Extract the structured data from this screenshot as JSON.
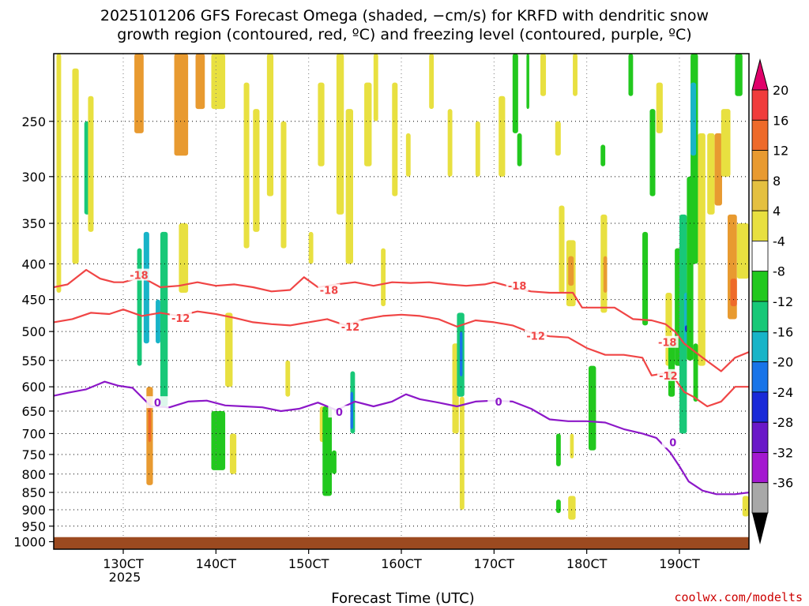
{
  "chart_data": {
    "type": "heatmap",
    "title_line1": "2025101206 GFS Forecast Omega (shaded, −cm/s) for KRFD with dendritic snow",
    "title_line2": "growth region (contoured, red, ºC) and freezing level (contoured, purple, ºC)",
    "xlabel": "Forecast Time (UTC)",
    "ylabel": "",
    "credit": "coolwx.com/modelts",
    "x_ticks": [
      "130CT",
      "140CT",
      "150CT",
      "160CT",
      "170CT",
      "180CT",
      "190CT"
    ],
    "x_year_label": "2025",
    "x_tick_days": [
      13,
      14,
      15,
      16,
      17,
      18,
      19
    ],
    "xlim_days": [
      12.25,
      19.75
    ],
    "y_ticks": [
      250,
      300,
      350,
      400,
      450,
      500,
      550,
      600,
      650,
      700,
      750,
      800,
      850,
      900,
      950,
      1000
    ],
    "ylim_hpa": [
      200,
      1025
    ],
    "y_scale": "log-pressure (inverted)",
    "grid": "dotted",
    "ground_pressure_hpa": 985,
    "colorbar": {
      "levels": [
        "20",
        "16",
        "12",
        "8",
        "4",
        "-4",
        "-8",
        "-12",
        "-16",
        "-20",
        "-24",
        "-28",
        "-32",
        "-36"
      ],
      "colors": [
        "#f03c3c",
        "#ee6a2a",
        "#e89a30",
        "#e4c040",
        "#e8e040",
        "#ffffff",
        "#22c81e",
        "#18c878",
        "#18b4c8",
        "#1874e8",
        "#1a2ad8",
        "#6a18c8",
        "#a418d0",
        "#a8a8a8"
      ],
      "top_arrow_color": "#e0006a",
      "bottom_arrow_color": "#000000"
    },
    "contours": [
      {
        "name": "-18",
        "color": "#f04545",
        "label": "-18",
        "x": [
          12.25,
          12.4,
          12.6,
          12.75,
          12.9,
          13.0,
          13.2,
          13.4,
          13.6,
          13.8,
          14.0,
          14.2,
          14.4,
          14.6,
          14.8,
          14.95,
          15.1,
          15.3,
          15.5,
          15.7,
          15.9,
          16.1,
          16.3,
          16.5,
          16.7,
          16.9,
          17.0,
          17.2,
          17.4,
          17.6,
          17.85,
          17.95,
          18.1,
          18.3,
          18.5,
          18.7,
          18.85,
          18.95,
          19.05,
          19.25,
          19.45,
          19.6,
          19.75
        ],
        "y": [
          432,
          428,
          408,
          420,
          425,
          425,
          418,
          432,
          430,
          425,
          430,
          428,
          432,
          438,
          436,
          418,
          432,
          428,
          425,
          430,
          425,
          426,
          425,
          428,
          430,
          428,
          425,
          432,
          438,
          440,
          440,
          462,
          462,
          462,
          480,
          482,
          488,
          500,
          520,
          545,
          570,
          545,
          535
        ]
      },
      {
        "name": "-12",
        "color": "#f04545",
        "label": "-12",
        "x": [
          12.25,
          12.45,
          12.65,
          12.85,
          13.0,
          13.2,
          13.4,
          13.6,
          13.8,
          14.0,
          14.2,
          14.4,
          14.6,
          14.8,
          15.0,
          15.2,
          15.4,
          15.6,
          15.8,
          16.0,
          16.2,
          16.4,
          16.6,
          16.8,
          17.0,
          17.2,
          17.4,
          17.6,
          17.8,
          18.0,
          18.2,
          18.4,
          18.6,
          18.7,
          18.8,
          18.9,
          19.05,
          19.15,
          19.3,
          19.45,
          19.6,
          19.75
        ],
        "y": [
          485,
          480,
          470,
          472,
          465,
          475,
          470,
          475,
          468,
          472,
          478,
          485,
          488,
          490,
          485,
          480,
          490,
          480,
          475,
          473,
          475,
          480,
          492,
          482,
          485,
          490,
          502,
          508,
          510,
          528,
          540,
          540,
          545,
          578,
          575,
          572,
          610,
          620,
          640,
          630,
          600,
          600
        ]
      },
      {
        "name": "0",
        "color": "#8c18c8",
        "label": "0",
        "x": [
          12.25,
          12.4,
          12.6,
          12.8,
          12.95,
          13.1,
          13.3,
          13.5,
          13.7,
          13.9,
          14.1,
          14.3,
          14.5,
          14.7,
          14.9,
          15.1,
          15.3,
          15.5,
          15.7,
          15.9,
          16.05,
          16.2,
          16.4,
          16.6,
          16.8,
          17.0,
          17.2,
          17.4,
          17.6,
          17.8,
          18.0,
          18.2,
          18.4,
          18.6,
          18.75,
          18.9,
          19.0,
          19.1,
          19.25,
          19.4,
          19.6,
          19.75
        ],
        "y": [
          618,
          612,
          605,
          590,
          598,
          602,
          640,
          642,
          630,
          628,
          638,
          640,
          642,
          650,
          645,
          632,
          648,
          630,
          640,
          630,
          615,
          625,
          632,
          640,
          630,
          628,
          630,
          645,
          668,
          672,
          672,
          675,
          690,
          700,
          710,
          745,
          780,
          820,
          845,
          855,
          855,
          850
        ]
      }
    ],
    "contour_label_positions": [
      {
        "name": "-18",
        "x": 13.17,
        "y": 415
      },
      {
        "name": "-18",
        "x": 15.22,
        "y": 436
      },
      {
        "name": "-18",
        "x": 17.25,
        "y": 430
      },
      {
        "name": "-12",
        "x": 13.62,
        "y": 478
      },
      {
        "name": "-12",
        "x": 15.45,
        "y": 492
      },
      {
        "name": "-12",
        "x": 17.45,
        "y": 507
      },
      {
        "name": "-18",
        "x": 18.87,
        "y": 518
      },
      {
        "name": "-12",
        "x": 18.88,
        "y": 578
      },
      {
        "name": "0",
        "x": 13.37,
        "y": 632
      },
      {
        "name": "0",
        "x": 15.33,
        "y": 652
      },
      {
        "name": "0",
        "x": 17.05,
        "y": 630
      },
      {
        "name": "0",
        "x": 18.93,
        "y": 720
      }
    ],
    "omega_cells": [
      {
        "x0": 12.28,
        "x1": 12.33,
        "p0": 200,
        "p1": 440,
        "v": 6
      },
      {
        "x0": 12.45,
        "x1": 12.52,
        "p0": 210,
        "p1": 400,
        "v": 6
      },
      {
        "x0": 12.58,
        "x1": 12.64,
        "p0": 250,
        "p1": 340,
        "v": -10
      },
      {
        "x0": 12.62,
        "x1": 12.68,
        "p0": 230,
        "p1": 360,
        "v": 6
      },
      {
        "x0": 13.12,
        "x1": 13.22,
        "p0": 200,
        "p1": 260,
        "v": 10
      },
      {
        "x0": 13.15,
        "x1": 13.2,
        "p0": 380,
        "p1": 560,
        "v": -10
      },
      {
        "x0": 13.22,
        "x1": 13.28,
        "p0": 360,
        "p1": 520,
        "v": -14
      },
      {
        "x0": 13.25,
        "x1": 13.32,
        "p0": 600,
        "p1": 830,
        "v": 10
      },
      {
        "x0": 13.27,
        "x1": 13.3,
        "p0": 620,
        "p1": 720,
        "v": 16
      },
      {
        "x0": 13.35,
        "x1": 13.4,
        "p0": 450,
        "p1": 520,
        "v": -12
      },
      {
        "x0": 13.4,
        "x1": 13.48,
        "p0": 360,
        "p1": 640,
        "v": -10
      },
      {
        "x0": 13.55,
        "x1": 13.7,
        "p0": 200,
        "p1": 280,
        "v": 10
      },
      {
        "x0": 13.6,
        "x1": 13.7,
        "p0": 350,
        "p1": 440,
        "v": 6
      },
      {
        "x0": 13.78,
        "x1": 13.88,
        "p0": 200,
        "p1": 240,
        "v": 10
      },
      {
        "x0": 13.95,
        "x1": 14.1,
        "p0": 200,
        "p1": 240,
        "v": 6
      },
      {
        "x0": 13.98,
        "x1": 14.05,
        "p0": 680,
        "p1": 740,
        "v": -12
      },
      {
        "x0": 13.95,
        "x1": 14.1,
        "p0": 650,
        "p1": 790,
        "v": -8
      },
      {
        "x0": 14.1,
        "x1": 14.18,
        "p0": 470,
        "p1": 600,
        "v": 6
      },
      {
        "x0": 14.15,
        "x1": 14.22,
        "p0": 700,
        "p1": 800,
        "v": 6
      },
      {
        "x0": 14.3,
        "x1": 14.36,
        "p0": 220,
        "p1": 380,
        "v": 6
      },
      {
        "x0": 14.4,
        "x1": 14.47,
        "p0": 240,
        "p1": 360,
        "v": 6
      },
      {
        "x0": 14.55,
        "x1": 14.62,
        "p0": 200,
        "p1": 320,
        "v": 6
      },
      {
        "x0": 14.7,
        "x1": 14.76,
        "p0": 250,
        "p1": 380,
        "v": 6
      },
      {
        "x0": 14.75,
        "x1": 14.8,
        "p0": 550,
        "p1": 620,
        "v": 6
      },
      {
        "x0": 15.0,
        "x1": 15.05,
        "p0": 360,
        "p1": 400,
        "v": 6
      },
      {
        "x0": 15.1,
        "x1": 15.17,
        "p0": 220,
        "p1": 290,
        "v": 6
      },
      {
        "x0": 15.12,
        "x1": 15.18,
        "p0": 640,
        "p1": 720,
        "v": 6
      },
      {
        "x0": 15.15,
        "x1": 15.25,
        "p0": 640,
        "p1": 860,
        "v": -8
      },
      {
        "x0": 15.25,
        "x1": 15.3,
        "p0": 740,
        "p1": 800,
        "v": -8
      },
      {
        "x0": 15.3,
        "x1": 15.38,
        "p0": 200,
        "p1": 340,
        "v": 6
      },
      {
        "x0": 15.4,
        "x1": 15.48,
        "p0": 240,
        "p1": 400,
        "v": 6
      },
      {
        "x0": 15.45,
        "x1": 15.5,
        "p0": 570,
        "p1": 700,
        "v": -10
      },
      {
        "x0": 15.45,
        "x1": 15.48,
        "p0": 610,
        "p1": 690,
        "v": -16
      },
      {
        "x0": 15.6,
        "x1": 15.68,
        "p0": 220,
        "p1": 290,
        "v": 6
      },
      {
        "x0": 15.7,
        "x1": 15.75,
        "p0": 200,
        "p1": 250,
        "v": 6
      },
      {
        "x0": 15.78,
        "x1": 15.83,
        "p0": 380,
        "p1": 460,
        "v": 6
      },
      {
        "x0": 15.9,
        "x1": 15.96,
        "p0": 220,
        "p1": 320,
        "v": 6
      },
      {
        "x0": 16.05,
        "x1": 16.1,
        "p0": 260,
        "p1": 300,
        "v": 6
      },
      {
        "x0": 16.3,
        "x1": 16.35,
        "p0": 200,
        "p1": 240,
        "v": 6
      },
      {
        "x0": 16.5,
        "x1": 16.55,
        "p0": 240,
        "p1": 300,
        "v": 6
      },
      {
        "x0": 16.55,
        "x1": 16.62,
        "p0": 520,
        "p1": 700,
        "v": 6
      },
      {
        "x0": 16.6,
        "x1": 16.68,
        "p0": 470,
        "p1": 620,
        "v": -10
      },
      {
        "x0": 16.63,
        "x1": 16.66,
        "p0": 500,
        "p1": 580,
        "v": -16
      },
      {
        "x0": 16.63,
        "x1": 16.68,
        "p0": 620,
        "p1": 900,
        "v": 6
      },
      {
        "x0": 16.8,
        "x1": 16.85,
        "p0": 250,
        "p1": 300,
        "v": 6
      },
      {
        "x0": 17.05,
        "x1": 17.12,
        "p0": 230,
        "p1": 300,
        "v": 6
      },
      {
        "x0": 17.2,
        "x1": 17.26,
        "p0": 200,
        "p1": 260,
        "v": -8
      },
      {
        "x0": 17.25,
        "x1": 17.3,
        "p0": 260,
        "p1": 290,
        "v": -8
      },
      {
        "x0": 17.35,
        "x1": 17.38,
        "p0": 200,
        "p1": 240,
        "v": -8
      },
      {
        "x0": 17.5,
        "x1": 17.56,
        "p0": 200,
        "p1": 230,
        "v": 6
      },
      {
        "x0": 17.7,
        "x1": 17.76,
        "p0": 330,
        "p1": 440,
        "v": 6
      },
      {
        "x0": 17.78,
        "x1": 17.88,
        "p0": 370,
        "p1": 460,
        "v": 6
      },
      {
        "x0": 17.8,
        "x1": 17.86,
        "p0": 390,
        "p1": 430,
        "v": 10
      },
      {
        "x0": 17.66,
        "x1": 17.72,
        "p0": 250,
        "p1": 280,
        "v": 6
      },
      {
        "x0": 17.67,
        "x1": 17.72,
        "p0": 700,
        "p1": 780,
        "v": -8
      },
      {
        "x0": 17.67,
        "x1": 17.72,
        "p0": 870,
        "p1": 910,
        "v": -8
      },
      {
        "x0": 17.8,
        "x1": 17.88,
        "p0": 860,
        "p1": 930,
        "v": 6
      },
      {
        "x0": 17.82,
        "x1": 17.86,
        "p0": 700,
        "p1": 760,
        "v": 6
      },
      {
        "x0": 17.85,
        "x1": 17.9,
        "p0": 200,
        "p1": 230,
        "v": 6
      },
      {
        "x0": 18.02,
        "x1": 18.1,
        "p0": 560,
        "p1": 740,
        "v": -8
      },
      {
        "x0": 18.15,
        "x1": 18.22,
        "p0": 340,
        "p1": 470,
        "v": 6
      },
      {
        "x0": 18.18,
        "x1": 18.22,
        "p0": 390,
        "p1": 440,
        "v": 10
      },
      {
        "x0": 18.15,
        "x1": 18.2,
        "p0": 270,
        "p1": 290,
        "v": -8
      },
      {
        "x0": 18.45,
        "x1": 18.5,
        "p0": 200,
        "p1": 230,
        "v": -8
      },
      {
        "x0": 18.6,
        "x1": 18.66,
        "p0": 360,
        "p1": 490,
        "v": -8
      },
      {
        "x0": 18.68,
        "x1": 18.74,
        "p0": 240,
        "p1": 320,
        "v": -8
      },
      {
        "x0": 18.75,
        "x1": 18.82,
        "p0": 220,
        "p1": 260,
        "v": 6
      },
      {
        "x0": 18.85,
        "x1": 18.92,
        "p0": 440,
        "p1": 560,
        "v": 6
      },
      {
        "x0": 18.88,
        "x1": 18.95,
        "p0": 520,
        "p1": 620,
        "v": -8
      },
      {
        "x0": 18.95,
        "x1": 19.02,
        "p0": 380,
        "p1": 560,
        "v": -8
      },
      {
        "x0": 19.0,
        "x1": 19.08,
        "p0": 340,
        "p1": 700,
        "v": -10
      },
      {
        "x0": 19.05,
        "x1": 19.09,
        "p0": 440,
        "p1": 520,
        "v": -14
      },
      {
        "x0": 19.06,
        "x1": 19.09,
        "p0": 490,
        "p1": 500,
        "v": -22
      },
      {
        "x0": 19.08,
        "x1": 19.15,
        "p0": 300,
        "p1": 550,
        "v": -8
      },
      {
        "x0": 19.12,
        "x1": 19.2,
        "p0": 200,
        "p1": 400,
        "v": -8
      },
      {
        "x0": 19.12,
        "x1": 19.18,
        "p0": 220,
        "p1": 280,
        "v": -12
      },
      {
        "x0": 19.15,
        "x1": 19.2,
        "p0": 520,
        "p1": 630,
        "v": -8
      },
      {
        "x0": 19.2,
        "x1": 19.28,
        "p0": 260,
        "p1": 560,
        "v": 6
      },
      {
        "x0": 19.3,
        "x1": 19.38,
        "p0": 260,
        "p1": 340,
        "v": 6
      },
      {
        "x0": 19.38,
        "x1": 19.46,
        "p0": 260,
        "p1": 330,
        "v": 10
      },
      {
        "x0": 19.45,
        "x1": 19.55,
        "p0": 240,
        "p1": 300,
        "v": 6
      },
      {
        "x0": 19.52,
        "x1": 19.62,
        "p0": 340,
        "p1": 480,
        "v": 10
      },
      {
        "x0": 19.55,
        "x1": 19.62,
        "p0": 420,
        "p1": 460,
        "v": 14
      },
      {
        "x0": 19.62,
        "x1": 19.75,
        "p0": 350,
        "p1": 420,
        "v": 6
      },
      {
        "x0": 19.6,
        "x1": 19.68,
        "p0": 200,
        "p1": 230,
        "v": -8
      },
      {
        "x0": 19.68,
        "x1": 19.75,
        "p0": 860,
        "p1": 920,
        "v": 6
      }
    ]
  }
}
